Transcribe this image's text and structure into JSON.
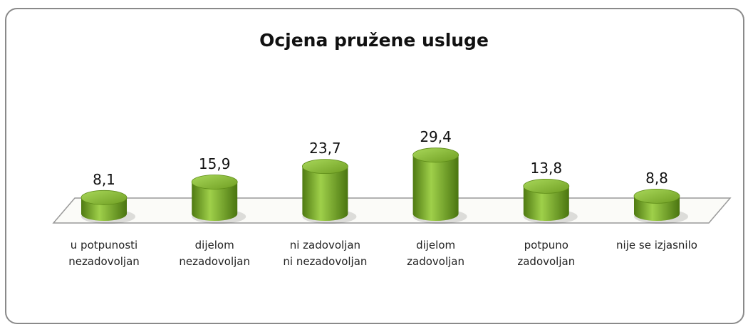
{
  "chart_data": {
    "type": "bar3d",
    "title": "Ocjena pružene usluge",
    "categories": [
      "u potpunosti\nnezadovoljan",
      "dijelom\nnezadovoljan",
      "ni zadovoljan\nni nezadovoljan",
      "dijelom\nzadovoljan",
      "potpuno\nzadovoljan",
      "nije se izjasnilo"
    ],
    "values": [
      8.1,
      15.9,
      23.7,
      29.4,
      13.8,
      8.8
    ],
    "value_labels": [
      "8,1",
      "15,9",
      "23,7",
      "29,4",
      "13,8",
      "8,8"
    ],
    "color": "#7aaa2a"
  }
}
